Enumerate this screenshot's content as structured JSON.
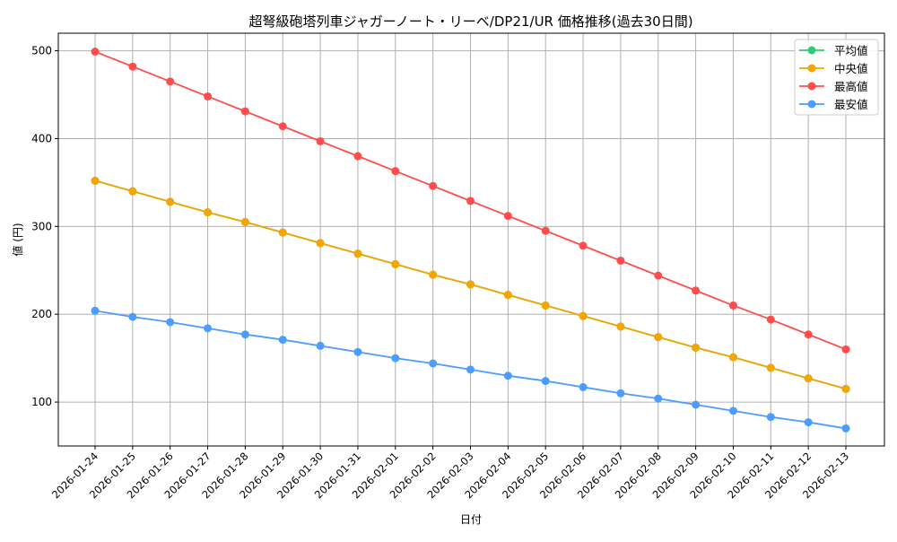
{
  "chart_data": {
    "type": "line",
    "title": "超弩級砲塔列車ジャガーノート・リーベ/DP21/UR 価格推移(過去30日間)",
    "xlabel": "日付",
    "ylabel": "値 (円)",
    "ylim": [
      50,
      520
    ],
    "yticks": [
      100,
      200,
      300,
      400,
      500
    ],
    "grid": true,
    "legend_position": "top-right",
    "x": [
      "2026-01-24",
      "2026-01-25",
      "2026-01-26",
      "2026-01-27",
      "2026-01-28",
      "2026-01-29",
      "2026-01-30",
      "2026-01-31",
      "2026-02-01",
      "2026-02-02",
      "2026-02-03",
      "2026-02-04",
      "2026-02-05",
      "2026-02-06",
      "2026-02-07",
      "2026-02-08",
      "2026-02-09",
      "2026-02-10",
      "2026-02-11",
      "2026-02-12",
      "2026-02-13"
    ],
    "series": [
      {
        "name": "平均値",
        "color": "#2ecc71",
        "values": [
          352,
          340,
          328,
          316,
          305,
          293,
          281,
          269,
          257,
          245,
          234,
          222,
          210,
          198,
          186,
          174,
          162,
          151,
          139,
          127,
          115
        ]
      },
      {
        "name": "中央値",
        "color": "#f5a500",
        "values": [
          352,
          340,
          328,
          316,
          305,
          293,
          281,
          269,
          257,
          245,
          234,
          222,
          210,
          198,
          186,
          174,
          162,
          151,
          139,
          127,
          115
        ]
      },
      {
        "name": "最高値",
        "color": "#ff4d4d",
        "values": [
          499,
          482,
          465,
          448,
          431,
          414,
          397,
          380,
          363,
          346,
          329,
          312,
          295,
          278,
          261,
          244,
          227,
          210,
          194,
          177,
          160
        ]
      },
      {
        "name": "最安値",
        "color": "#4d9cff",
        "values": [
          204,
          197,
          191,
          184,
          177,
          171,
          164,
          157,
          150,
          144,
          137,
          130,
          124,
          117,
          110,
          104,
          97,
          90,
          83,
          77,
          70
        ]
      }
    ]
  }
}
